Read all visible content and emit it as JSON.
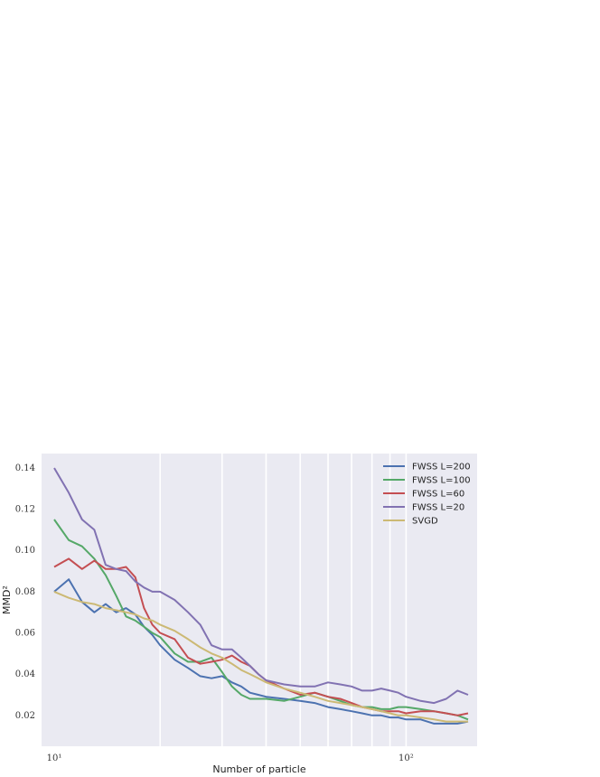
{
  "chart_data": {
    "type": "line",
    "title": "",
    "xlabel": "Number of particle",
    "ylabel": "MMD²",
    "xscale": "log",
    "xlim": [
      10,
      150
    ],
    "ylim": [
      0.005,
      0.147
    ],
    "xticks": [
      {
        "value": 10,
        "label": "10¹"
      },
      {
        "value": 100,
        "label": "10²"
      }
    ],
    "yticks": [
      {
        "value": 0.02,
        "label": "0.02"
      },
      {
        "value": 0.04,
        "label": "0.04"
      },
      {
        "value": 0.06,
        "label": "0.06"
      },
      {
        "value": 0.08,
        "label": "0.08"
      },
      {
        "value": 0.1,
        "label": "0.10"
      },
      {
        "value": 0.12,
        "label": "0.12"
      },
      {
        "value": 0.14,
        "label": "0.14"
      }
    ],
    "grid": true,
    "legend": "top-right",
    "background": "#EAEAF2",
    "series": [
      {
        "name": "FWSS L=200",
        "color": "#4C72B0",
        "x": [
          10,
          11,
          12,
          13,
          14,
          15,
          16,
          17,
          18,
          19,
          20,
          22,
          24,
          26,
          28,
          30,
          32,
          34,
          36,
          38,
          40,
          45,
          50,
          55,
          60,
          65,
          70,
          75,
          80,
          85,
          90,
          95,
          100,
          110,
          120,
          130,
          140,
          150
        ],
        "y": [
          0.08,
          0.086,
          0.075,
          0.07,
          0.074,
          0.07,
          0.072,
          0.069,
          0.063,
          0.059,
          0.054,
          0.047,
          0.043,
          0.039,
          0.038,
          0.039,
          0.036,
          0.034,
          0.031,
          0.03,
          0.029,
          0.028,
          0.027,
          0.026,
          0.024,
          0.023,
          0.022,
          0.021,
          0.02,
          0.02,
          0.019,
          0.019,
          0.018,
          0.018,
          0.016,
          0.016,
          0.016,
          0.017
        ]
      },
      {
        "name": "FWSS L=100",
        "color": "#55A868",
        "x": [
          10,
          11,
          12,
          13,
          14,
          15,
          16,
          17,
          18,
          19,
          20,
          22,
          24,
          26,
          28,
          30,
          32,
          34,
          36,
          38,
          40,
          45,
          50,
          55,
          60,
          65,
          70,
          75,
          80,
          85,
          90,
          95,
          100,
          110,
          120,
          130,
          140,
          150
        ],
        "y": [
          0.115,
          0.105,
          0.102,
          0.096,
          0.088,
          0.078,
          0.068,
          0.066,
          0.063,
          0.06,
          0.058,
          0.05,
          0.046,
          0.046,
          0.048,
          0.041,
          0.034,
          0.03,
          0.028,
          0.028,
          0.028,
          0.027,
          0.029,
          0.031,
          0.029,
          0.027,
          0.025,
          0.024,
          0.024,
          0.023,
          0.023,
          0.024,
          0.024,
          0.023,
          0.022,
          0.021,
          0.02,
          0.018
        ]
      },
      {
        "name": "FWSS L=60",
        "color": "#C44E52",
        "x": [
          10,
          11,
          12,
          13,
          14,
          15,
          16,
          17,
          18,
          19,
          20,
          22,
          24,
          26,
          28,
          30,
          32,
          34,
          36,
          38,
          40,
          45,
          50,
          55,
          60,
          65,
          70,
          75,
          80,
          85,
          90,
          95,
          100,
          110,
          120,
          130,
          140,
          150
        ],
        "y": [
          0.092,
          0.096,
          0.091,
          0.095,
          0.091,
          0.091,
          0.092,
          0.087,
          0.072,
          0.064,
          0.06,
          0.057,
          0.048,
          0.045,
          0.046,
          0.047,
          0.049,
          0.046,
          0.044,
          0.04,
          0.037,
          0.033,
          0.03,
          0.031,
          0.029,
          0.028,
          0.026,
          0.024,
          0.023,
          0.022,
          0.022,
          0.022,
          0.021,
          0.022,
          0.022,
          0.021,
          0.02,
          0.021
        ]
      },
      {
        "name": "FWSS L=20",
        "color": "#8172B2",
        "x": [
          10,
          11,
          12,
          13,
          14,
          15,
          16,
          17,
          18,
          19,
          20,
          22,
          24,
          26,
          28,
          30,
          32,
          34,
          36,
          38,
          40,
          45,
          50,
          55,
          60,
          65,
          70,
          75,
          80,
          85,
          90,
          95,
          100,
          110,
          120,
          130,
          140,
          150
        ],
        "y": [
          0.14,
          0.128,
          0.115,
          0.11,
          0.093,
          0.091,
          0.09,
          0.085,
          0.082,
          0.08,
          0.08,
          0.076,
          0.07,
          0.064,
          0.054,
          0.052,
          0.052,
          0.048,
          0.044,
          0.04,
          0.037,
          0.035,
          0.034,
          0.034,
          0.036,
          0.035,
          0.034,
          0.032,
          0.032,
          0.033,
          0.032,
          0.031,
          0.029,
          0.027,
          0.026,
          0.028,
          0.032,
          0.03
        ]
      },
      {
        "name": "SVGD",
        "color": "#CCB974",
        "x": [
          10,
          11,
          12,
          13,
          14,
          15,
          16,
          17,
          18,
          19,
          20,
          22,
          24,
          26,
          28,
          30,
          32,
          34,
          36,
          38,
          40,
          45,
          50,
          55,
          60,
          65,
          70,
          75,
          80,
          85,
          90,
          95,
          100,
          110,
          120,
          130,
          140,
          150
        ],
        "y": [
          0.08,
          0.077,
          0.075,
          0.074,
          0.072,
          0.071,
          0.07,
          0.069,
          0.067,
          0.066,
          0.064,
          0.061,
          0.057,
          0.053,
          0.05,
          0.048,
          0.045,
          0.042,
          0.04,
          0.038,
          0.036,
          0.033,
          0.031,
          0.029,
          0.027,
          0.026,
          0.025,
          0.024,
          0.023,
          0.022,
          0.021,
          0.02,
          0.02,
          0.019,
          0.018,
          0.017,
          0.017,
          0.017
        ]
      }
    ]
  }
}
